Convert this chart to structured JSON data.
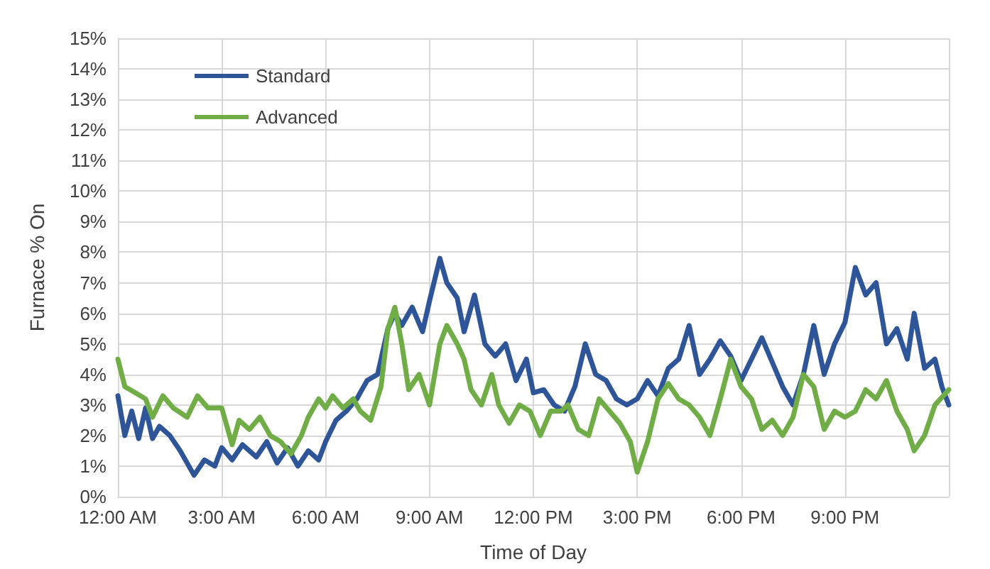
{
  "chart_data": {
    "type": "line",
    "xlabel": "Time of Day",
    "ylabel": "Furnace % On",
    "legend": "top left",
    "grid": true,
    "marker": "none",
    "line_style": "solid",
    "xlim": [
      0,
      24
    ],
    "xticks": [
      {
        "value": 0,
        "label": "12:00 AM"
      },
      {
        "value": 3,
        "label": "3:00 AM"
      },
      {
        "value": 6,
        "label": "6:00 AM"
      },
      {
        "value": 9,
        "label": "9:00 AM"
      },
      {
        "value": 12,
        "label": "12:00 PM"
      },
      {
        "value": 15,
        "label": "3:00 PM"
      },
      {
        "value": 18,
        "label": "6:00 PM"
      },
      {
        "value": 21,
        "label": "9:00 PM"
      },
      {
        "value": 24,
        "label": null
      }
    ],
    "ylim": [
      0,
      15
    ],
    "yticks": [
      {
        "value": 0,
        "label": "0%"
      },
      {
        "value": 1,
        "label": "1%"
      },
      {
        "value": 2,
        "label": "2%"
      },
      {
        "value": 3,
        "label": "3%"
      },
      {
        "value": 4,
        "label": "4%"
      },
      {
        "value": 5,
        "label": "5%"
      },
      {
        "value": 6,
        "label": "6%"
      },
      {
        "value": 7,
        "label": "7%"
      },
      {
        "value": 8,
        "label": "8%"
      },
      {
        "value": 9,
        "label": "9%"
      },
      {
        "value": 10,
        "label": "10%"
      },
      {
        "value": 11,
        "label": "11%"
      },
      {
        "value": 12,
        "label": "12%"
      },
      {
        "value": 13,
        "label": "13%"
      },
      {
        "value": 14,
        "label": "14%"
      },
      {
        "value": 15,
        "label": "15%"
      }
    ],
    "series": [
      {
        "name": "Standard",
        "color": "#2e5597",
        "x": [
          0,
          0.2,
          0.4,
          0.6,
          0.8,
          1.0,
          1.2,
          1.5,
          1.8,
          2.0,
          2.2,
          2.5,
          2.8,
          3.0,
          3.3,
          3.6,
          4.0,
          4.3,
          4.6,
          4.9,
          5.2,
          5.5,
          5.8,
          6.0,
          6.3,
          6.6,
          6.9,
          7.2,
          7.5,
          7.8,
          8.0,
          8.2,
          8.5,
          8.8,
          9.0,
          9.3,
          9.5,
          9.8,
          10.0,
          10.3,
          10.6,
          10.9,
          11.2,
          11.5,
          11.8,
          12.0,
          12.3,
          12.6,
          12.9,
          13.2,
          13.5,
          13.8,
          14.1,
          14.4,
          14.7,
          15.0,
          15.3,
          15.6,
          15.9,
          16.2,
          16.5,
          16.8,
          17.1,
          17.4,
          17.7,
          18.0,
          18.3,
          18.6,
          18.9,
          19.2,
          19.5,
          19.8,
          20.1,
          20.4,
          20.7,
          21.0,
          21.3,
          21.6,
          21.9,
          22.2,
          22.5,
          22.8,
          23.0,
          23.3,
          23.6,
          23.8,
          24.0
        ],
        "values": [
          3.3,
          2.0,
          2.8,
          1.9,
          2.9,
          1.9,
          2.3,
          2.0,
          1.5,
          1.1,
          0.7,
          1.2,
          1.0,
          1.6,
          1.2,
          1.7,
          1.3,
          1.8,
          1.1,
          1.6,
          1.0,
          1.5,
          1.2,
          1.8,
          2.5,
          2.8,
          3.2,
          3.8,
          4.0,
          5.5,
          6.0,
          5.6,
          6.2,
          5.4,
          6.4,
          7.8,
          7.0,
          6.5,
          5.4,
          6.6,
          5.0,
          4.6,
          5.0,
          3.8,
          4.5,
          3.4,
          3.5,
          3.0,
          2.8,
          3.6,
          5.0,
          4.0,
          3.8,
          3.2,
          3.0,
          3.2,
          3.8,
          3.3,
          4.2,
          4.5,
          5.6,
          4.0,
          4.5,
          5.1,
          4.6,
          3.8,
          4.5,
          5.2,
          4.4,
          3.6,
          3.0,
          4.0,
          5.6,
          4.0,
          5.0,
          5.7,
          7.5,
          6.6,
          7.0,
          5.0,
          5.5,
          4.5,
          6.0,
          4.2,
          4.5,
          3.6,
          3.0
        ]
      },
      {
        "name": "Advanced",
        "color": "#70ad47",
        "x": [
          0,
          0.2,
          0.5,
          0.8,
          1.0,
          1.3,
          1.6,
          2.0,
          2.3,
          2.6,
          3.0,
          3.3,
          3.5,
          3.8,
          4.1,
          4.4,
          4.7,
          5.0,
          5.3,
          5.5,
          5.8,
          6.0,
          6.2,
          6.5,
          6.8,
          7.0,
          7.3,
          7.6,
          7.8,
          8.0,
          8.2,
          8.4,
          8.7,
          9.0,
          9.3,
          9.5,
          9.8,
          10.0,
          10.2,
          10.5,
          10.8,
          11.0,
          11.3,
          11.6,
          11.9,
          12.2,
          12.5,
          12.8,
          13.0,
          13.3,
          13.6,
          13.9,
          14.2,
          14.5,
          14.8,
          15.0,
          15.3,
          15.6,
          15.9,
          16.2,
          16.5,
          16.8,
          17.1,
          17.4,
          17.7,
          18.0,
          18.3,
          18.6,
          18.9,
          19.2,
          19.5,
          19.8,
          20.1,
          20.4,
          20.7,
          21.0,
          21.3,
          21.6,
          21.9,
          22.2,
          22.5,
          22.8,
          23.0,
          23.3,
          23.6,
          24.0
        ],
        "values": [
          4.5,
          3.6,
          3.4,
          3.2,
          2.6,
          3.3,
          2.9,
          2.6,
          3.3,
          2.9,
          2.9,
          1.7,
          2.5,
          2.2,
          2.6,
          2.0,
          1.8,
          1.4,
          2.0,
          2.6,
          3.2,
          2.9,
          3.3,
          2.9,
          3.2,
          2.8,
          2.5,
          3.6,
          5.5,
          6.2,
          5.0,
          3.5,
          4.0,
          3.0,
          5.0,
          5.6,
          5.0,
          4.5,
          3.5,
          3.0,
          4.0,
          3.0,
          2.4,
          3.0,
          2.8,
          2.0,
          2.8,
          2.8,
          3.0,
          2.2,
          2.0,
          3.2,
          2.8,
          2.4,
          1.8,
          0.8,
          1.8,
          3.2,
          3.7,
          3.2,
          3.0,
          2.6,
          2.0,
          3.2,
          4.5,
          3.6,
          3.2,
          2.2,
          2.5,
          2.0,
          2.6,
          4.0,
          3.6,
          2.2,
          2.8,
          2.6,
          2.8,
          3.5,
          3.2,
          3.8,
          2.8,
          2.2,
          1.5,
          2.0,
          3.0,
          3.5
        ]
      }
    ]
  }
}
